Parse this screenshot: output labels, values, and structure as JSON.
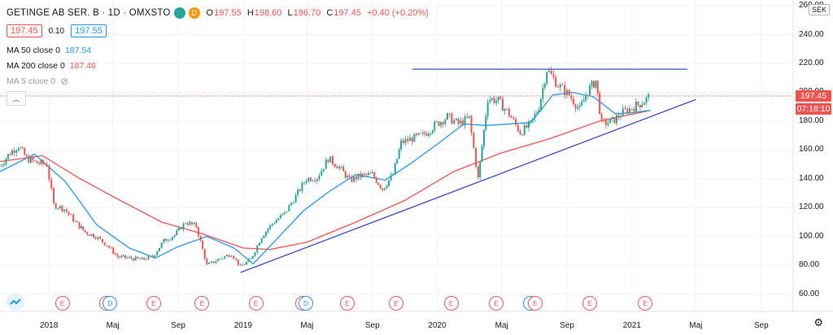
{
  "header": {
    "symbol": "GETINGE AB SER. B · 1D · OMXSTO",
    "badge_green": "",
    "badge_orange": "D",
    "ohlc": [
      {
        "k": "O",
        "v": "197.55"
      },
      {
        "k": "H",
        "v": "198.60"
      },
      {
        "k": "L",
        "v": "196.70"
      },
      {
        "k": "C",
        "v": "197.45"
      }
    ],
    "change": "+0.40 (+0.20%)"
  },
  "bid_ask": {
    "bid": "197.45",
    "spread": "0.10",
    "ask": "197.55"
  },
  "indicators": [
    {
      "label": "MA 50 close 0",
      "value": "187.54",
      "color": "#2196f3"
    },
    {
      "label": "MA 200 close 0",
      "value": "187.46",
      "color": "#ef5350"
    },
    {
      "label": "MA 5 close 0",
      "value": "",
      "color": "#9598a1",
      "hidden": true
    }
  ],
  "price_axis": {
    "currency": "SEK",
    "labels": [
      "60.00",
      "80.00",
      "100.00",
      "120.00",
      "140.00",
      "160.00",
      "180.00",
      "200.00",
      "220.00",
      "240.00",
      "260.00"
    ],
    "last_price": "197.45",
    "countdown": "07:18:10"
  },
  "time_axis": {
    "labels": [
      "2018",
      "Maj",
      "Sep",
      "2019",
      "Maj",
      "Sep",
      "2020",
      "Maj",
      "Sep",
      "2021",
      "Maj",
      "Sep"
    ]
  },
  "events": [
    {
      "t": "2018-01-26",
      "type": "E"
    },
    {
      "t": "2018-04-20",
      "type": "E"
    },
    {
      "t": "2018-04-26",
      "type": "D"
    },
    {
      "t": "2018-07-17",
      "type": "E"
    },
    {
      "t": "2018-10-16",
      "type": "E"
    },
    {
      "t": "2019-01-25",
      "type": "E"
    },
    {
      "t": "2019-04-23",
      "type": "E"
    },
    {
      "t": "2019-04-29",
      "type": "D"
    },
    {
      "t": "2019-07-16",
      "type": "E"
    },
    {
      "t": "2019-10-16",
      "type": "E"
    },
    {
      "t": "2020-01-27",
      "type": "E"
    },
    {
      "t": "2020-04-21",
      "type": "E"
    },
    {
      "t": "2020-06-24",
      "type": "D"
    },
    {
      "t": "2020-07-03",
      "type": "E"
    },
    {
      "t": "2020-10-14",
      "type": "E"
    },
    {
      "t": "2021-01-26",
      "type": "E"
    }
  ],
  "chart_data": {
    "type": "candlestick",
    "x_range": [
      "2017-10-01",
      "2021-10-31"
    ],
    "y_range": [
      48,
      264
    ],
    "closes": [
      {
        "t": "2017-10-01",
        "v": 149
      },
      {
        "t": "2017-10-20",
        "v": 158
      },
      {
        "t": "2017-11-05",
        "v": 163
      },
      {
        "t": "2017-11-20",
        "v": 154
      },
      {
        "t": "2017-12-10",
        "v": 151
      },
      {
        "t": "2017-12-28",
        "v": 150
      },
      {
        "t": "2018-01-10",
        "v": 122
      },
      {
        "t": "2018-01-30",
        "v": 119
      },
      {
        "t": "2018-02-20",
        "v": 110
      },
      {
        "t": "2018-03-10",
        "v": 103
      },
      {
        "t": "2018-03-30",
        "v": 100
      },
      {
        "t": "2018-04-20",
        "v": 94
      },
      {
        "t": "2018-05-10",
        "v": 86
      },
      {
        "t": "2018-06-01",
        "v": 85
      },
      {
        "t": "2018-06-25",
        "v": 84
      },
      {
        "t": "2018-07-15",
        "v": 86
      },
      {
        "t": "2018-08-05",
        "v": 97
      },
      {
        "t": "2018-08-25",
        "v": 101
      },
      {
        "t": "2018-09-15",
        "v": 110
      },
      {
        "t": "2018-10-05",
        "v": 107
      },
      {
        "t": "2018-10-25",
        "v": 80
      },
      {
        "t": "2018-11-15",
        "v": 84
      },
      {
        "t": "2018-12-10",
        "v": 88
      },
      {
        "t": "2018-12-27",
        "v": 79
      },
      {
        "t": "2019-01-15",
        "v": 84
      },
      {
        "t": "2019-02-05",
        "v": 100
      },
      {
        "t": "2019-02-25",
        "v": 109
      },
      {
        "t": "2019-03-20",
        "v": 116
      },
      {
        "t": "2019-04-10",
        "v": 128
      },
      {
        "t": "2019-04-30",
        "v": 140
      },
      {
        "t": "2019-05-20",
        "v": 141
      },
      {
        "t": "2019-06-10",
        "v": 154
      },
      {
        "t": "2019-07-01",
        "v": 148
      },
      {
        "t": "2019-07-20",
        "v": 139
      },
      {
        "t": "2019-08-10",
        "v": 142
      },
      {
        "t": "2019-09-01",
        "v": 143
      },
      {
        "t": "2019-09-20",
        "v": 133
      },
      {
        "t": "2019-10-10",
        "v": 143
      },
      {
        "t": "2019-10-25",
        "v": 165
      },
      {
        "t": "2019-11-15",
        "v": 168
      },
      {
        "t": "2019-12-05",
        "v": 170
      },
      {
        "t": "2019-12-27",
        "v": 177
      },
      {
        "t": "2020-01-20",
        "v": 183
      },
      {
        "t": "2020-02-10",
        "v": 178
      },
      {
        "t": "2020-03-01",
        "v": 182
      },
      {
        "t": "2020-03-18",
        "v": 140
      },
      {
        "t": "2020-04-05",
        "v": 196
      },
      {
        "t": "2020-04-25",
        "v": 194
      },
      {
        "t": "2020-05-15",
        "v": 185
      },
      {
        "t": "2020-06-05",
        "v": 172
      },
      {
        "t": "2020-06-25",
        "v": 178
      },
      {
        "t": "2020-07-10",
        "v": 190
      },
      {
        "t": "2020-07-25",
        "v": 216
      },
      {
        "t": "2020-08-15",
        "v": 205
      },
      {
        "t": "2020-09-05",
        "v": 198
      },
      {
        "t": "2020-09-25",
        "v": 188
      },
      {
        "t": "2020-10-10",
        "v": 201
      },
      {
        "t": "2020-10-25",
        "v": 208
      },
      {
        "t": "2020-11-05",
        "v": 178
      },
      {
        "t": "2020-11-25",
        "v": 180
      },
      {
        "t": "2020-12-15",
        "v": 186
      },
      {
        "t": "2021-01-05",
        "v": 190
      },
      {
        "t": "2021-01-20",
        "v": 193
      },
      {
        "t": "2021-02-05",
        "v": 197.45
      }
    ],
    "ma50": [
      {
        "t": "2017-10-01",
        "v": 145
      },
      {
        "t": "2017-12-05",
        "v": 157
      },
      {
        "t": "2018-02-01",
        "v": 138
      },
      {
        "t": "2018-04-01",
        "v": 108
      },
      {
        "t": "2018-06-01",
        "v": 92
      },
      {
        "t": "2018-07-20",
        "v": 85
      },
      {
        "t": "2018-09-01",
        "v": 93
      },
      {
        "t": "2018-10-25",
        "v": 100
      },
      {
        "t": "2018-12-15",
        "v": 92
      },
      {
        "t": "2019-01-20",
        "v": 81
      },
      {
        "t": "2019-03-05",
        "v": 98
      },
      {
        "t": "2019-04-25",
        "v": 118
      },
      {
        "t": "2019-06-15",
        "v": 132
      },
      {
        "t": "2019-08-01",
        "v": 143
      },
      {
        "t": "2019-09-25",
        "v": 139
      },
      {
        "t": "2019-11-10",
        "v": 150
      },
      {
        "t": "2020-01-05",
        "v": 165
      },
      {
        "t": "2020-02-20",
        "v": 178
      },
      {
        "t": "2020-04-01",
        "v": 177
      },
      {
        "t": "2020-05-15",
        "v": 178
      },
      {
        "t": "2020-06-25",
        "v": 179
      },
      {
        "t": "2020-08-05",
        "v": 198
      },
      {
        "t": "2020-09-10",
        "v": 200
      },
      {
        "t": "2020-10-20",
        "v": 197
      },
      {
        "t": "2020-12-01",
        "v": 185
      },
      {
        "t": "2021-01-05",
        "v": 186
      },
      {
        "t": "2021-02-05",
        "v": 187.54
      }
    ],
    "ma200": [
      {
        "t": "2017-10-01",
        "v": 152
      },
      {
        "t": "2017-12-20",
        "v": 156
      },
      {
        "t": "2018-03-01",
        "v": 140
      },
      {
        "t": "2018-05-15",
        "v": 125
      },
      {
        "t": "2018-08-01",
        "v": 110
      },
      {
        "t": "2018-10-15",
        "v": 102
      },
      {
        "t": "2019-01-01",
        "v": 92
      },
      {
        "t": "2019-02-20",
        "v": 91
      },
      {
        "t": "2019-05-01",
        "v": 96
      },
      {
        "t": "2019-08-01",
        "v": 110
      },
      {
        "t": "2019-11-01",
        "v": 125
      },
      {
        "t": "2020-02-01",
        "v": 145
      },
      {
        "t": "2020-05-01",
        "v": 158
      },
      {
        "t": "2020-08-01",
        "v": 168
      },
      {
        "t": "2020-11-01",
        "v": 180
      },
      {
        "t": "2021-02-05",
        "v": 187.46
      }
    ],
    "trendlines": [
      {
        "name": "resistance",
        "from": {
          "t": "2019-11-15",
          "v": 216
        },
        "to": {
          "t": "2021-04-15",
          "v": 216
        }
      },
      {
        "name": "support",
        "from": {
          "t": "2018-12-27",
          "v": 75
        },
        "to": {
          "t": "2021-05-01",
          "v": 195
        }
      }
    ],
    "last_price_line": 197.45
  }
}
